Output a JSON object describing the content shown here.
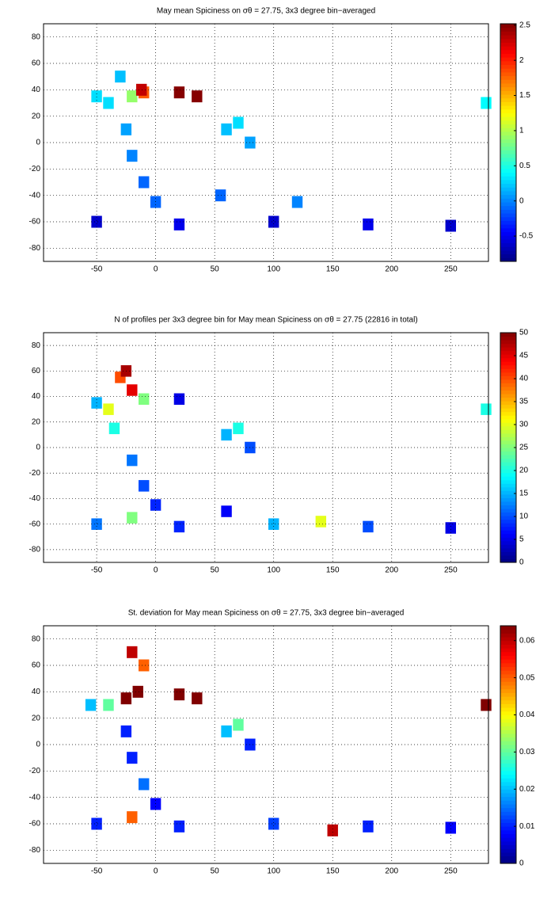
{
  "chart_data": [
    {
      "type": "heatmap",
      "title": "May mean Spiciness on σθ = 27.75, 3x3 degree bin−averaged",
      "xlim": [
        -95,
        282
      ],
      "xticks": [
        -50,
        0,
        50,
        100,
        150,
        200,
        250
      ],
      "ylim": [
        -90,
        90
      ],
      "yticks": [
        -80,
        -60,
        -40,
        -20,
        0,
        20,
        40,
        60,
        80
      ],
      "grid": true,
      "clim": [
        -0.86,
        2.52
      ],
      "cticks": [
        -0.5,
        0,
        0.5,
        1,
        1.5,
        2,
        2.5
      ],
      "colormap": "jet",
      "x": [
        -40,
        -20,
        -10,
        -12,
        20,
        35,
        -30,
        -50,
        -25,
        -20,
        -10,
        0,
        60,
        70,
        80,
        -50,
        20,
        100,
        180,
        250,
        280,
        55,
        120
      ],
      "y": [
        30,
        35,
        38,
        40,
        38,
        35,
        50,
        35,
        10,
        -10,
        -30,
        -45,
        10,
        15,
        0,
        -60,
        -62,
        -60,
        -62,
        -63,
        30,
        -40,
        -45
      ],
      "values": [
        0.3,
        0.9,
        1.8,
        2.3,
        2.5,
        2.5,
        0.2,
        0.3,
        0.1,
        0,
        -0.1,
        -0.1,
        0.2,
        0.3,
        0.1,
        -0.6,
        -0.5,
        -0.6,
        -0.5,
        -0.6,
        0.4,
        -0.1,
        0
      ]
    },
    {
      "type": "heatmap",
      "title": "N of profiles per 3x3 degree bin for May mean Spiciness on σθ = 27.75 (22816 in total)",
      "xlim": [
        -95,
        282
      ],
      "xticks": [
        -50,
        0,
        50,
        100,
        150,
        200,
        250
      ],
      "ylim": [
        -90,
        90
      ],
      "yticks": [
        -80,
        -60,
        -40,
        -20,
        0,
        20,
        40,
        60,
        80
      ],
      "grid": true,
      "clim": [
        0,
        50
      ],
      "cticks": [
        0,
        5,
        10,
        15,
        20,
        25,
        30,
        35,
        40,
        45,
        50
      ],
      "colormap": "jet",
      "x": [
        -40,
        -20,
        -10,
        -30,
        -25,
        -50,
        -35,
        -20,
        -10,
        0,
        20,
        60,
        70,
        80,
        -50,
        -20,
        20,
        60,
        100,
        140,
        180,
        250,
        280
      ],
      "y": [
        30,
        45,
        38,
        55,
        60,
        35,
        15,
        -10,
        -30,
        -45,
        38,
        10,
        15,
        0,
        -60,
        -55,
        -62,
        -50,
        -60,
        -58,
        -62,
        -63,
        30
      ],
      "values": [
        30,
        45,
        25,
        40,
        48,
        15,
        20,
        12,
        10,
        8,
        5,
        15,
        20,
        10,
        12,
        25,
        8,
        6,
        15,
        30,
        10,
        5,
        20
      ]
    },
    {
      "type": "heatmap",
      "title": "St. deviation for May mean Spiciness on σθ = 27.75, 3x3 degree bin−averaged",
      "xlim": [
        -95,
        282
      ],
      "xticks": [
        -50,
        0,
        50,
        100,
        150,
        200,
        250
      ],
      "ylim": [
        -90,
        90
      ],
      "yticks": [
        -80,
        -60,
        -40,
        -20,
        0,
        20,
        40,
        60,
        80
      ],
      "grid": true,
      "clim": [
        0,
        0.064
      ],
      "cticks": [
        0,
        0.01,
        0.02,
        0.03,
        0.04,
        0.05,
        0.06
      ],
      "colormap": "jet",
      "x": [
        -40,
        -25,
        -15,
        20,
        35,
        -10,
        -20,
        -55,
        -25,
        -20,
        -10,
        0,
        60,
        70,
        80,
        -50,
        -20,
        20,
        100,
        150,
        180,
        250,
        280
      ],
      "y": [
        30,
        35,
        40,
        38,
        35,
        60,
        70,
        30,
        10,
        -10,
        -30,
        -45,
        10,
        15,
        0,
        -60,
        -55,
        -62,
        -60,
        -65,
        -62,
        -63,
        30
      ],
      "values": [
        0.03,
        0.064,
        0.064,
        0.064,
        0.064,
        0.05,
        0.06,
        0.02,
        0.01,
        0.01,
        0.015,
        0.008,
        0.02,
        0.03,
        0.01,
        0.01,
        0.05,
        0.01,
        0.012,
        0.06,
        0.01,
        0.008,
        0.064
      ]
    }
  ]
}
